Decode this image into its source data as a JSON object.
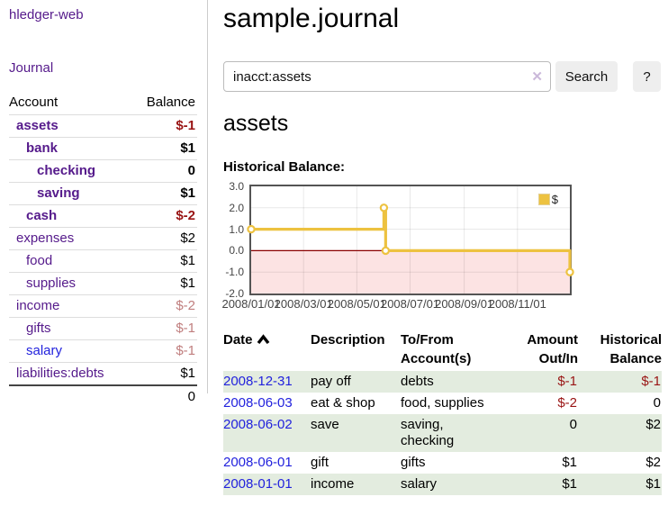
{
  "colors": {
    "accent_purple": "#551a8b",
    "link_blue": "#2222dd",
    "negative_dark": "#991414",
    "negative_light": "#c07e7e",
    "row_green": "#e3ecdf",
    "series_yellow": "#edc240"
  },
  "sidebar": {
    "brand": "hledger-web",
    "nav": {
      "journal": "Journal"
    },
    "table": {
      "headers": {
        "account": "Account",
        "balance": "Balance"
      },
      "rows": [
        {
          "name": "assets",
          "indent": 1,
          "bold": true,
          "value": "$-1",
          "neg": "dark",
          "link": "purple"
        },
        {
          "name": "bank",
          "indent": 2,
          "bold": true,
          "value": "$1",
          "neg": "none",
          "link": "purple"
        },
        {
          "name": "checking",
          "indent": 3,
          "bold": true,
          "value": "0",
          "neg": "none",
          "link": "purple"
        },
        {
          "name": "saving",
          "indent": 3,
          "bold": true,
          "value": "$1",
          "neg": "none",
          "link": "purple"
        },
        {
          "name": "cash",
          "indent": 2,
          "bold": true,
          "value": "$-2",
          "neg": "dark",
          "link": "purple"
        },
        {
          "name": "expenses",
          "indent": 1,
          "bold": false,
          "value": "$2",
          "neg": "none",
          "link": "purple"
        },
        {
          "name": "food",
          "indent": 2,
          "bold": false,
          "value": "$1",
          "neg": "none",
          "link": "purple"
        },
        {
          "name": "supplies",
          "indent": 2,
          "bold": false,
          "value": "$1",
          "neg": "none",
          "link": "purple"
        },
        {
          "name": "income",
          "indent": 1,
          "bold": false,
          "value": "$-2",
          "neg": "light",
          "link": "purple"
        },
        {
          "name": "gifts",
          "indent": 2,
          "bold": false,
          "value": "$-1",
          "neg": "light",
          "link": "purple"
        },
        {
          "name": "salary",
          "indent": 2,
          "bold": false,
          "value": "$-1",
          "neg": "light",
          "link": "blue"
        },
        {
          "name": "liabilities:debts",
          "indent": 1,
          "bold": false,
          "value": "$1",
          "neg": "none",
          "link": "purple"
        }
      ],
      "total": "0"
    }
  },
  "main": {
    "title": "sample.journal",
    "search": {
      "value": "inacct:assets",
      "clear_icon": "✕",
      "button_label": "Search",
      "help_label": "?"
    },
    "account_heading": "assets",
    "chart_heading": "Historical Balance:"
  },
  "chart_data": {
    "type": "line",
    "step": true,
    "title": "Historical Balance:",
    "series": [
      {
        "name": "$",
        "color": "#edc240",
        "points": [
          [
            "2008-01-01",
            1
          ],
          [
            "2008-06-01",
            2
          ],
          [
            "2008-06-03",
            0
          ],
          [
            "2008-12-31",
            -1
          ]
        ]
      }
    ],
    "xlim": [
      "2008-01-01",
      "2008-12-31"
    ],
    "ylim": [
      -2,
      3
    ],
    "yticks": [
      {
        "v": 3,
        "label": "3.0"
      },
      {
        "v": 2,
        "label": "2.0"
      },
      {
        "v": 1,
        "label": "1.0"
      },
      {
        "v": 0,
        "label": "0.0"
      },
      {
        "v": -1,
        "label": "-1.0"
      },
      {
        "v": -2,
        "label": "-2.0"
      }
    ],
    "xticks": [
      {
        "d": "2008-01-01",
        "label": "2008/01/01"
      },
      {
        "d": "2008-03-01",
        "label": "2008/03/01"
      },
      {
        "d": "2008-05-01",
        "label": "2008/05/01"
      },
      {
        "d": "2008-07-01",
        "label": "2008/07/01"
      },
      {
        "d": "2008-09-01",
        "label": "2008/09/01"
      },
      {
        "d": "2008-11-01",
        "label": "2008/11/01"
      }
    ],
    "legend": {
      "label": "$",
      "position": "top-right"
    },
    "grid": true,
    "negative_fill": "#fce3e3",
    "zero_line_color": "#8b0000"
  },
  "transactions": {
    "headers": {
      "date": "Date",
      "sort_indicator": "asc",
      "description": "Description",
      "accounts_line1": "To/From",
      "accounts_line2": "Account(s)",
      "amount_line1": "Amount",
      "amount_line2": "Out/In",
      "balance_line1": "Historical",
      "balance_line2": "Balance"
    },
    "rows": [
      {
        "date": "2008-12-31",
        "description": "pay off",
        "accounts": "debts",
        "amount": "$-1",
        "amount_negative": true,
        "balance": "$-1",
        "balance_negative": true,
        "shaded": true
      },
      {
        "date": "2008-06-03",
        "description": "eat & shop",
        "accounts": "food, supplies",
        "amount": "$-2",
        "amount_negative": true,
        "balance": "0",
        "balance_negative": false,
        "shaded": false
      },
      {
        "date": "2008-06-02",
        "description": "save",
        "accounts": "saving,\nchecking",
        "amount": "0",
        "amount_negative": false,
        "balance": "$2",
        "balance_negative": false,
        "shaded": true
      },
      {
        "date": "2008-06-01",
        "description": "gift",
        "accounts": "gifts",
        "amount": "$1",
        "amount_negative": false,
        "balance": "$2",
        "balance_negative": false,
        "shaded": false
      },
      {
        "date": "2008-01-01",
        "description": "income",
        "accounts": "salary",
        "amount": "$1",
        "amount_negative": false,
        "balance": "$1",
        "balance_negative": false,
        "shaded": true
      }
    ]
  }
}
